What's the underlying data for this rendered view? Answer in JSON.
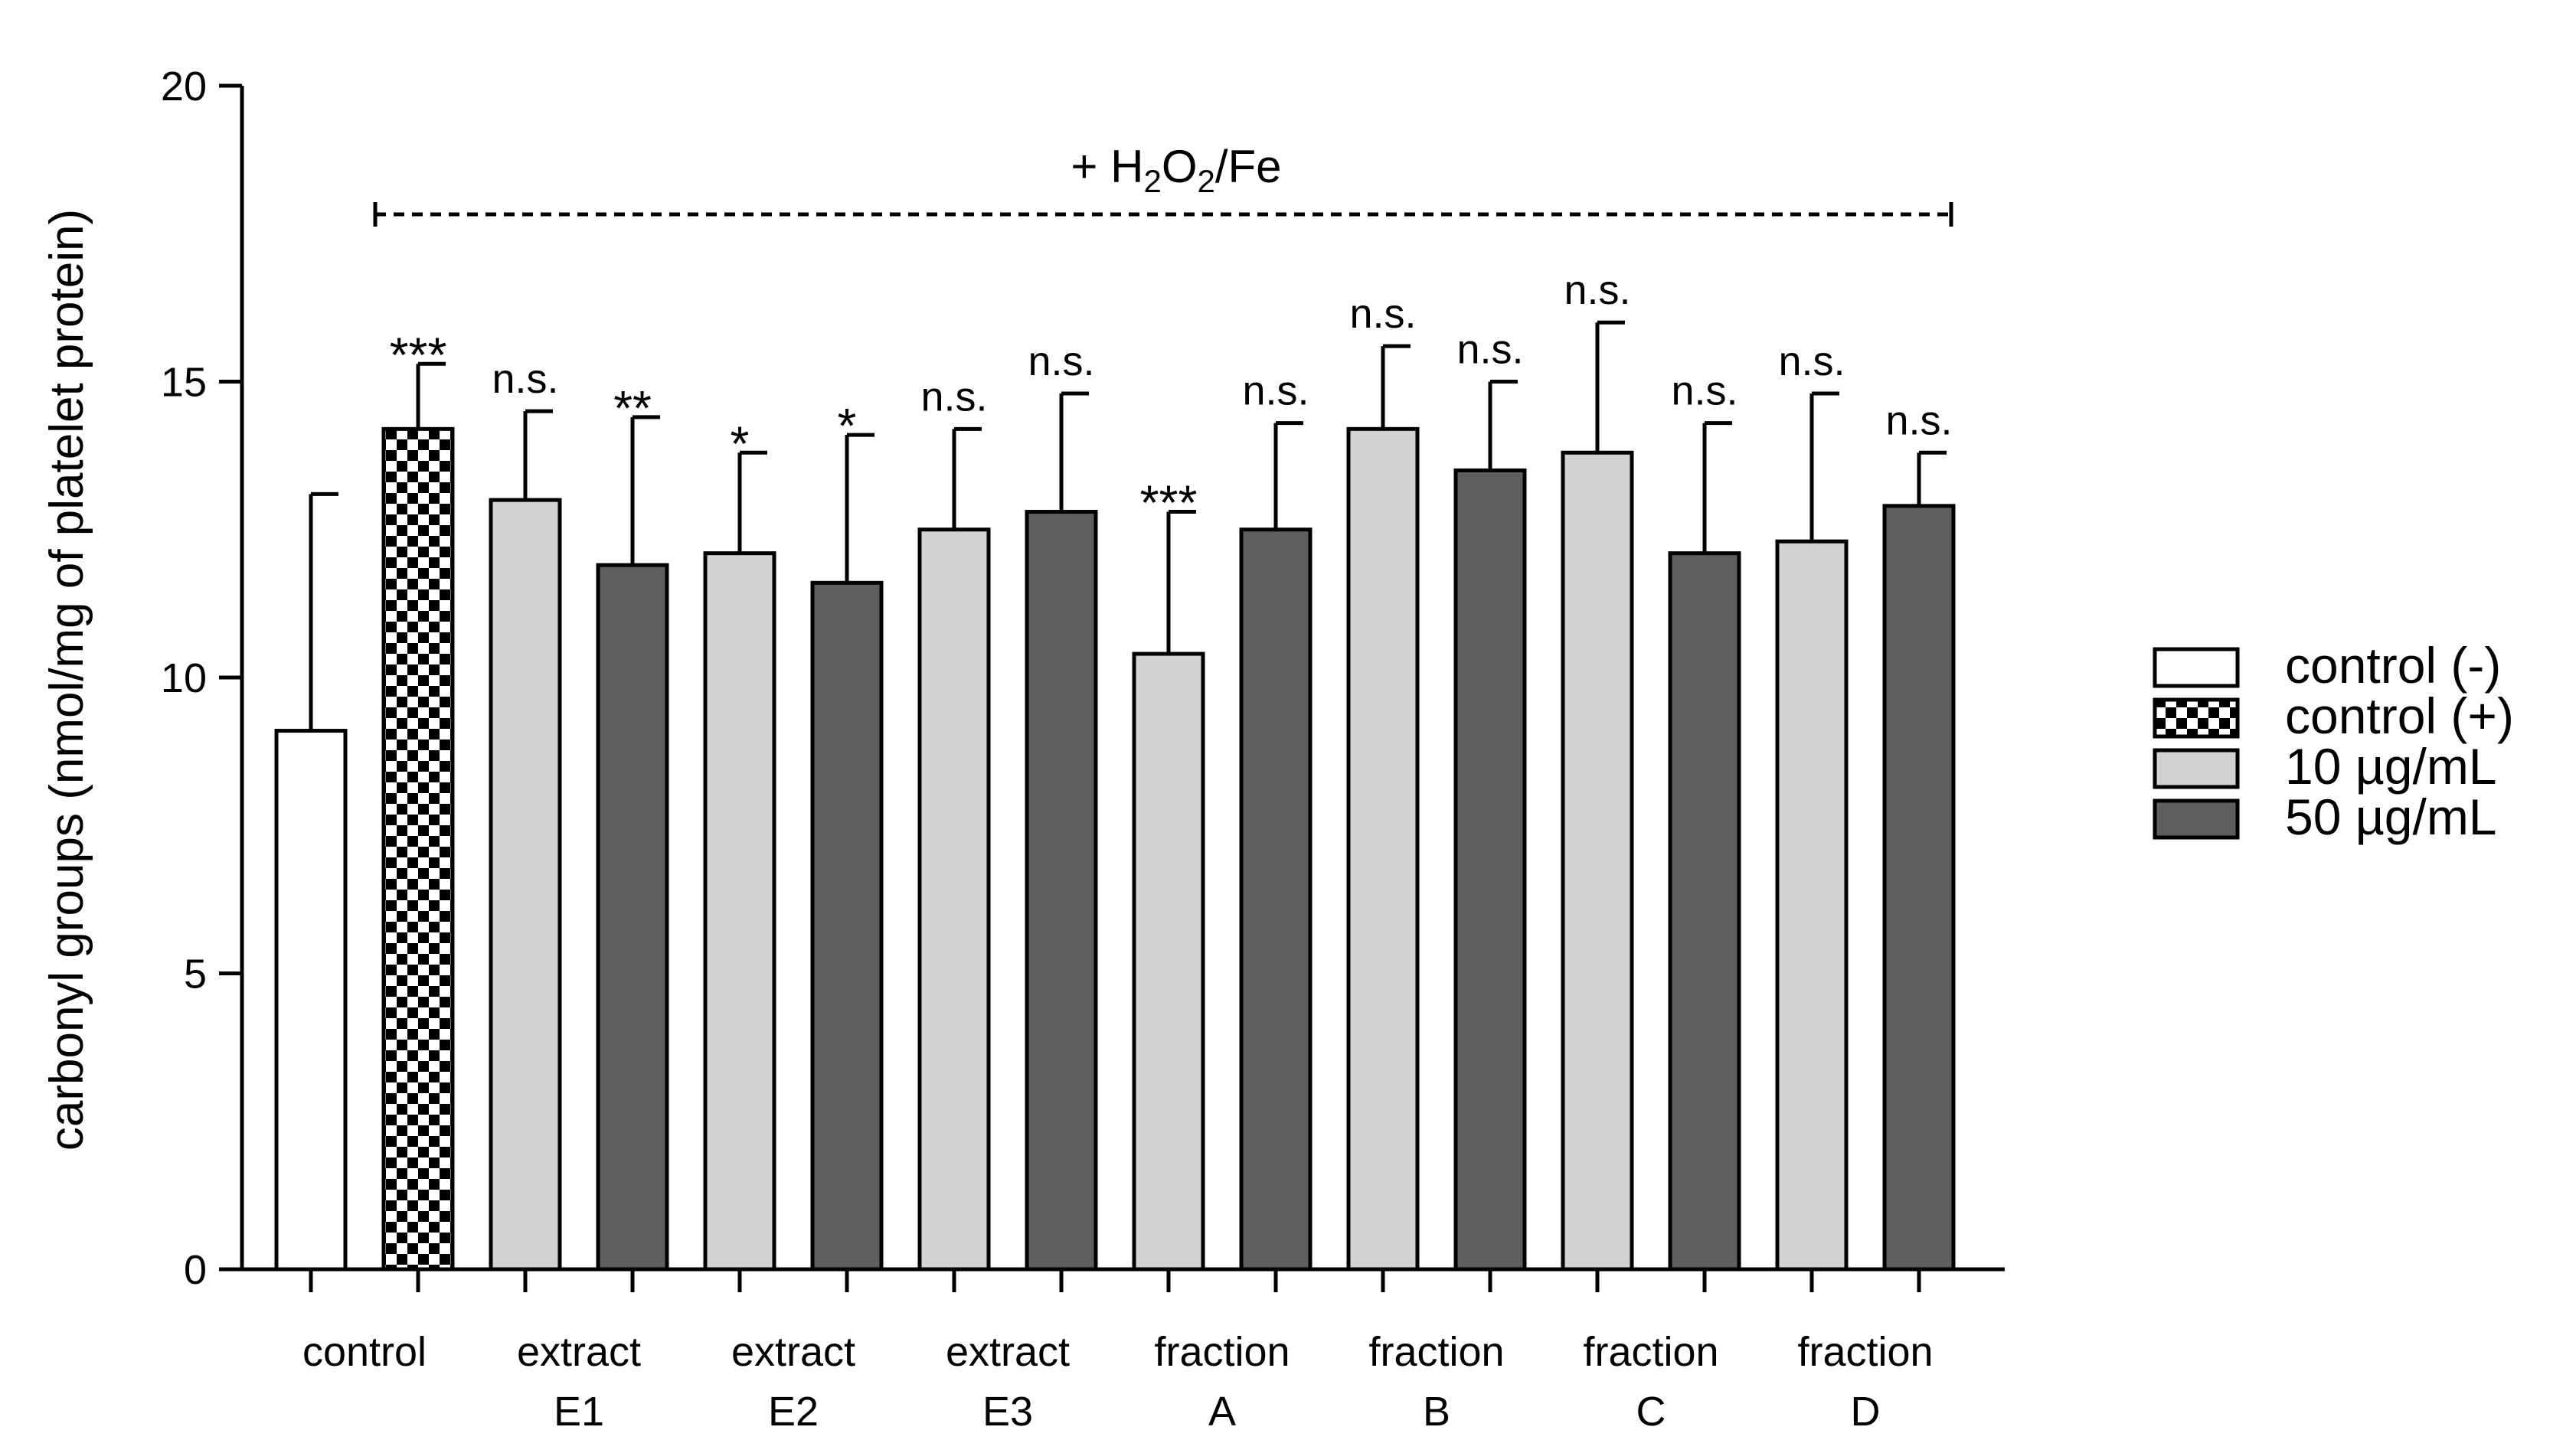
{
  "chart_data": {
    "type": "bar",
    "title": "",
    "xlabel": "",
    "ylabel": "carbonyl groups (nmol/mg of platelet protein)",
    "ylim": [
      0,
      20
    ],
    "yticks": [
      0,
      5,
      10,
      15,
      20
    ],
    "grid": false,
    "legend_position": "right",
    "treatment_label": "+ H2O2/Fe",
    "treatment_label_parts": [
      "+ H",
      "2",
      "O",
      "2",
      "/Fe"
    ],
    "groups": [
      {
        "label_lines": [
          "control"
        ]
      },
      {
        "label_lines": [
          "extract",
          "E1"
        ]
      },
      {
        "label_lines": [
          "extract",
          "E2"
        ]
      },
      {
        "label_lines": [
          "extract",
          "E3"
        ]
      },
      {
        "label_lines": [
          "fraction",
          "A"
        ]
      },
      {
        "label_lines": [
          "fraction",
          "B"
        ]
      },
      {
        "label_lines": [
          "fraction",
          "C"
        ]
      },
      {
        "label_lines": [
          "fraction",
          "D"
        ]
      }
    ],
    "legend": [
      {
        "label": "control (-)",
        "fill": "#ffffff",
        "pattern": "none"
      },
      {
        "label": "control (+)",
        "fill": "#000000",
        "pattern": "checker"
      },
      {
        "label": "10 µg/mL",
        "fill": "#d3d3d3",
        "pattern": "none"
      },
      {
        "label": "50 µg/mL",
        "fill": "#5e5e5e",
        "pattern": "none"
      }
    ],
    "bars": [
      {
        "group": 0,
        "series": 0,
        "value": 9.1,
        "error": 4.0,
        "sig": ""
      },
      {
        "group": 0,
        "series": 1,
        "value": 14.2,
        "error": 1.1,
        "sig": "***"
      },
      {
        "group": 1,
        "series": 2,
        "value": 13.0,
        "error": 1.5,
        "sig": "n.s."
      },
      {
        "group": 1,
        "series": 3,
        "value": 11.9,
        "error": 2.5,
        "sig": "**"
      },
      {
        "group": 2,
        "series": 2,
        "value": 12.1,
        "error": 1.7,
        "sig": "*"
      },
      {
        "group": 2,
        "series": 3,
        "value": 11.6,
        "error": 2.5,
        "sig": "*"
      },
      {
        "group": 3,
        "series": 2,
        "value": 12.5,
        "error": 1.7,
        "sig": "n.s."
      },
      {
        "group": 3,
        "series": 3,
        "value": 12.8,
        "error": 2.0,
        "sig": "n.s."
      },
      {
        "group": 4,
        "series": 2,
        "value": 10.4,
        "error": 2.4,
        "sig": "***"
      },
      {
        "group": 4,
        "series": 3,
        "value": 12.5,
        "error": 1.8,
        "sig": "n.s."
      },
      {
        "group": 5,
        "series": 2,
        "value": 14.2,
        "error": 1.4,
        "sig": "n.s."
      },
      {
        "group": 5,
        "series": 3,
        "value": 13.5,
        "error": 1.5,
        "sig": "n.s."
      },
      {
        "group": 6,
        "series": 2,
        "value": 13.8,
        "error": 2.2,
        "sig": "n.s."
      },
      {
        "group": 6,
        "series": 3,
        "value": 12.1,
        "error": 2.2,
        "sig": "n.s."
      },
      {
        "group": 7,
        "series": 2,
        "value": 12.3,
        "error": 2.5,
        "sig": "n.s."
      },
      {
        "group": 7,
        "series": 3,
        "value": 12.9,
        "error": 0.9,
        "sig": "n.s."
      }
    ]
  }
}
